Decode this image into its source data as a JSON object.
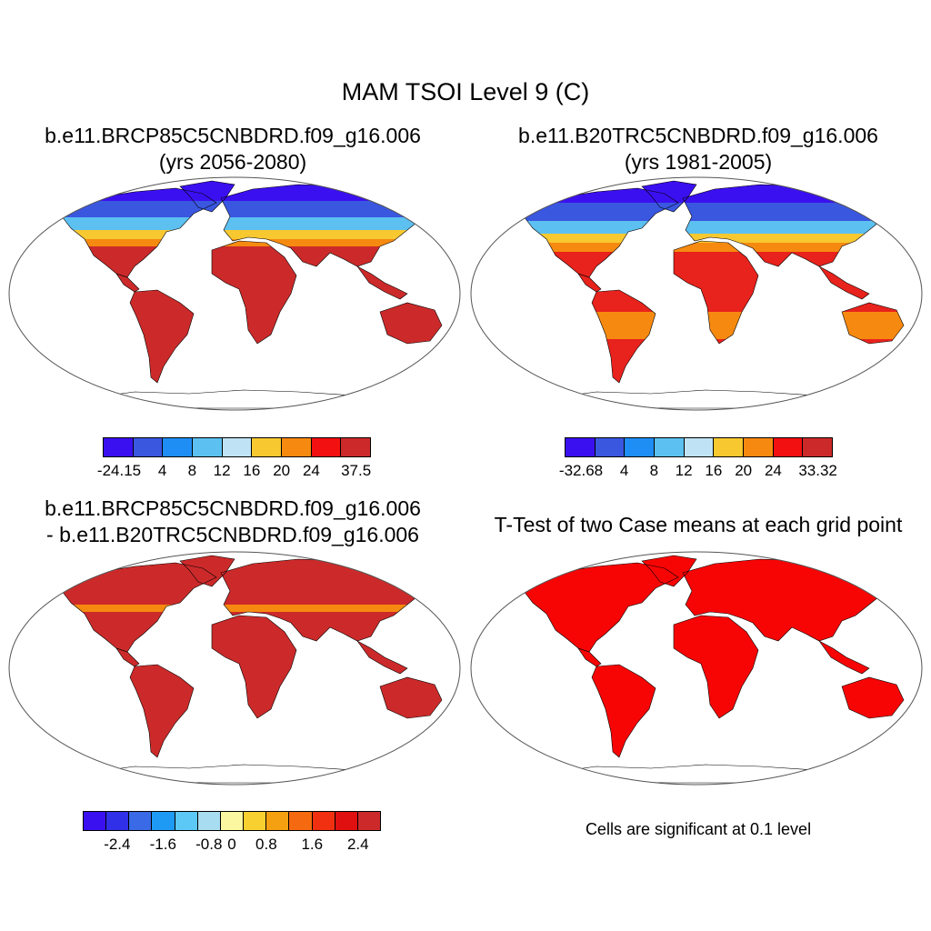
{
  "title": "MAM TSOI Level 9 (C)",
  "panels": [
    {
      "title_line1": "b.e11.BRCP85C5CNBDRD.f09_g16.006",
      "title_line2": "(yrs 2056-2080)",
      "colorbar": {
        "colors": [
          "#3b10f0",
          "#3a57e0",
          "#1e8ef5",
          "#5cc0f0",
          "#bfe3f5",
          "#f7c830",
          "#f68a10",
          "#f21010",
          "#cc2a2a"
        ],
        "labels": [
          "-24.15",
          "4",
          "8",
          "12",
          "16",
          "20",
          "24",
          "37.5"
        ]
      }
    },
    {
      "title_line1": "b.e11.B20TRC5CNBDRD.f09_g16.006",
      "title_line2": "(yrs 1981-2005)",
      "colorbar": {
        "colors": [
          "#3b10f0",
          "#3a57e0",
          "#1e8ef5",
          "#5cc0f0",
          "#bfe3f5",
          "#f7c830",
          "#f68a10",
          "#f21010",
          "#cc2a2a"
        ],
        "labels": [
          "-32.68",
          "4",
          "8",
          "12",
          "16",
          "20",
          "24",
          "33.32"
        ]
      }
    },
    {
      "title_line1": "b.e11.BRCP85C5CNBDRD.f09_g16.006",
      "title_line2": "- b.e11.B20TRC5CNBDRD.f09_g16.006",
      "colorbar": {
        "colors": [
          "#3b10f0",
          "#3030e8",
          "#3a6ae6",
          "#1e9af5",
          "#5cc8f5",
          "#a8dcf0",
          "#fbf7a0",
          "#f8d030",
          "#f5a010",
          "#f56a10",
          "#f03010",
          "#e01010",
          "#cc2a2a"
        ],
        "labels": [
          "-2.4",
          "-1.6",
          "-0.8",
          "0",
          "0.8",
          "1.6",
          "2.4"
        ]
      }
    },
    {
      "title_line1": "T-Test of two Case means at each grid point",
      "note": "Cells are significant at 0.1 level"
    }
  ],
  "map_colors": {
    "land_warm": "#e8221c",
    "land_hot": "#cc2a2a",
    "arctic_cold": "#3b10f0",
    "cold": "#3a57e0",
    "cool": "#5cc0f0",
    "mild": "#f7c830",
    "warm": "#f68a10",
    "significant": "#f70505",
    "outline": "#000000"
  }
}
